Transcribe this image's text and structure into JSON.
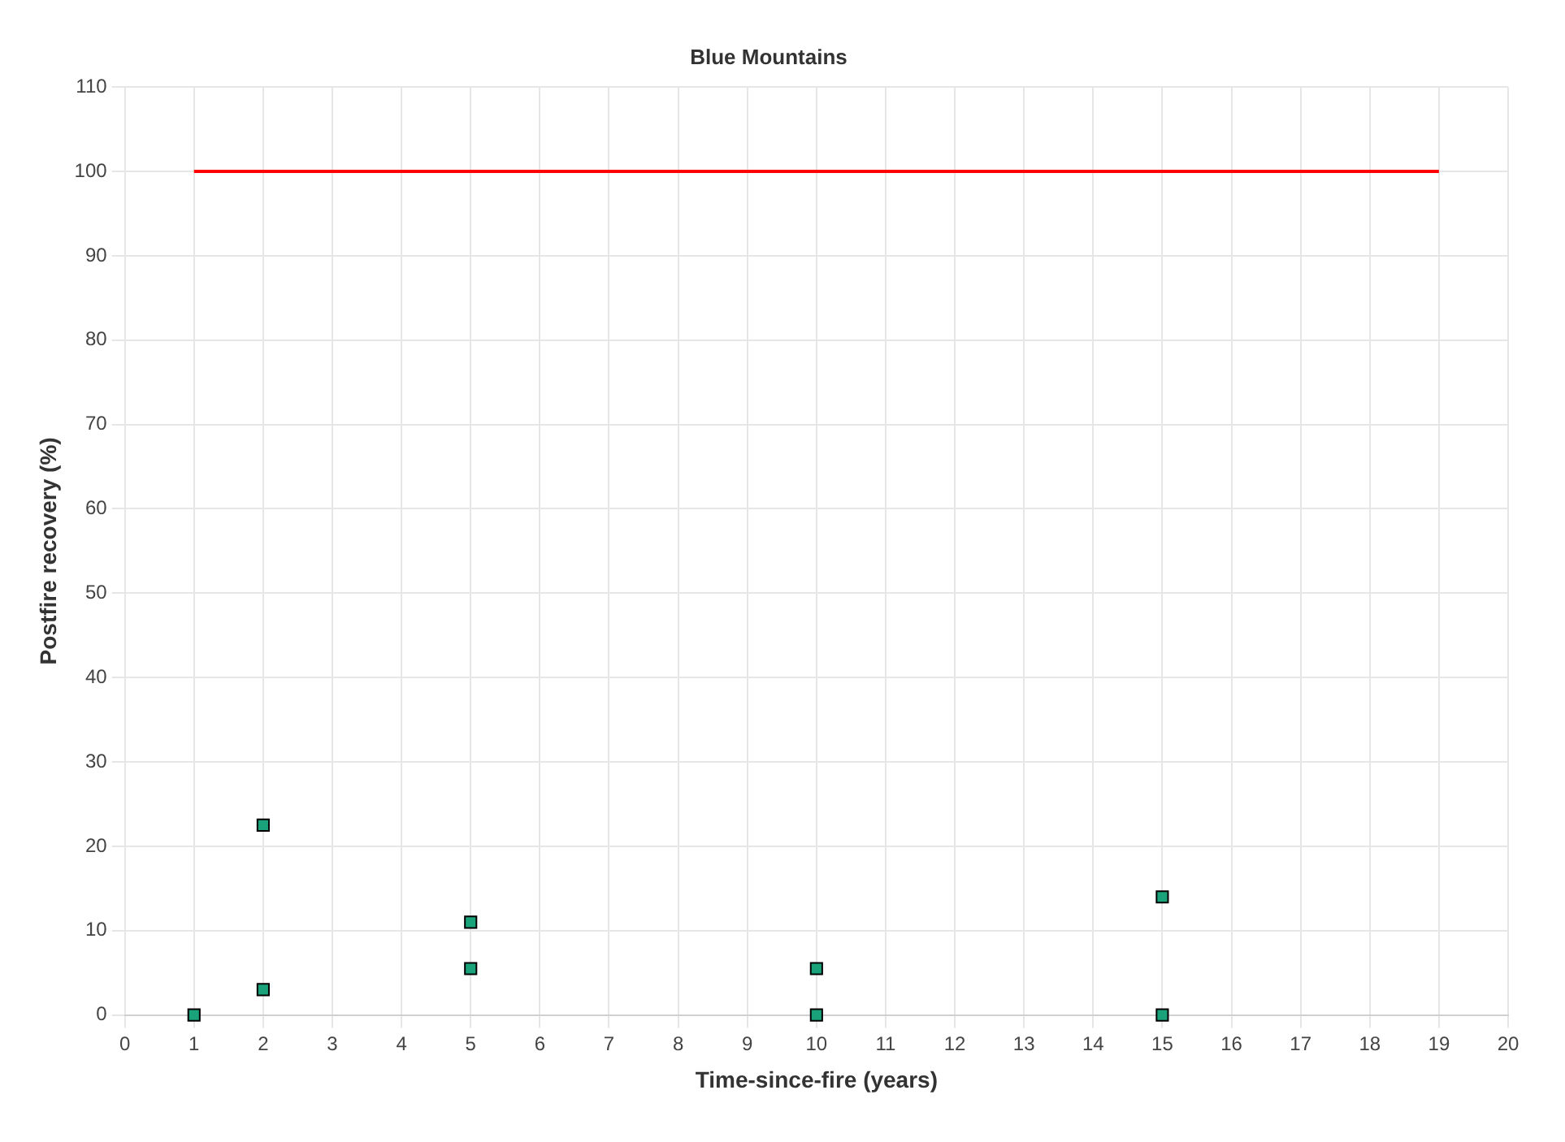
{
  "chart_data": {
    "type": "scatter",
    "title": "Blue Mountains",
    "xlabel": "Time-since-fire (years)",
    "ylabel": "Postfire recovery (%)",
    "xlim": [
      0,
      20
    ],
    "xticks": [
      0,
      1,
      2,
      3,
      4,
      5,
      6,
      7,
      8,
      9,
      10,
      11,
      12,
      13,
      14,
      15,
      16,
      17,
      18,
      19,
      20
    ],
    "ylim": [
      0,
      110
    ],
    "yticks": [
      0,
      10,
      20,
      30,
      40,
      50,
      60,
      70,
      80,
      90,
      100,
      110
    ],
    "grid": true,
    "legend": false,
    "marker": "square",
    "series": [
      {
        "type": "line",
        "color": "#ff0000",
        "x": [
          1,
          19
        ],
        "values": [
          100,
          100
        ],
        "marker": "none"
      },
      {
        "type": "scatter",
        "color": "#1aa37a",
        "x": [
          1,
          2,
          2,
          5,
          5,
          10,
          10,
          15,
          15
        ],
        "values": [
          0,
          22.5,
          3,
          11,
          5.5,
          5.5,
          0,
          14,
          0
        ]
      }
    ]
  }
}
